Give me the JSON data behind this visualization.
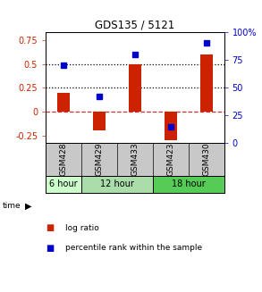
{
  "title": "GDS135 / 5121",
  "samples": [
    "GSM428",
    "GSM429",
    "GSM433",
    "GSM423",
    "GSM430"
  ],
  "log_ratio": [
    0.2,
    -0.2,
    0.5,
    -0.3,
    0.6
  ],
  "percentile_pct": [
    70,
    42,
    80,
    15,
    90
  ],
  "time_groups": [
    {
      "label": "6 hour",
      "cols": [
        0
      ],
      "color": "#ccffcc"
    },
    {
      "label": "12 hour",
      "cols": [
        1,
        2
      ],
      "color": "#aaddaa"
    },
    {
      "label": "18 hour",
      "cols": [
        3,
        4
      ],
      "color": "#55cc55"
    }
  ],
  "ylim_left": [
    -0.3333,
    0.8333
  ],
  "ylim_right": [
    0,
    100
  ],
  "bar_color": "#cc2200",
  "dot_color": "#0000cc",
  "hline_dotted": [
    0.25,
    0.5
  ],
  "hline_zero_color": "#cc3333",
  "yticks_left": [
    -0.25,
    0,
    0.25,
    0.5,
    0.75
  ],
  "yticks_right": [
    0,
    25,
    50,
    75,
    100
  ],
  "bar_width": 0.35
}
